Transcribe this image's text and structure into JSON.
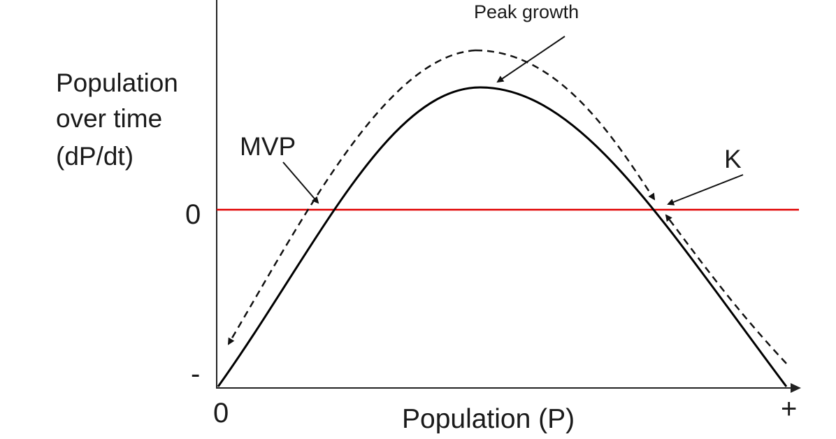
{
  "y_axis": {
    "label_lines": [
      "Population",
      "over time",
      "(dP/dt)"
    ],
    "tick_zero": "0",
    "tick_minus": "-"
  },
  "x_axis": {
    "label": "Population (P)",
    "tick_zero": "0",
    "tick_plus": "+"
  },
  "annotations": {
    "peak": "Peak growth",
    "mvp": "MVP",
    "k": "K"
  },
  "colors": {
    "axis": "#222222",
    "curve": "#000000",
    "dashed": "#111111",
    "zero_line": "#e00000"
  }
}
